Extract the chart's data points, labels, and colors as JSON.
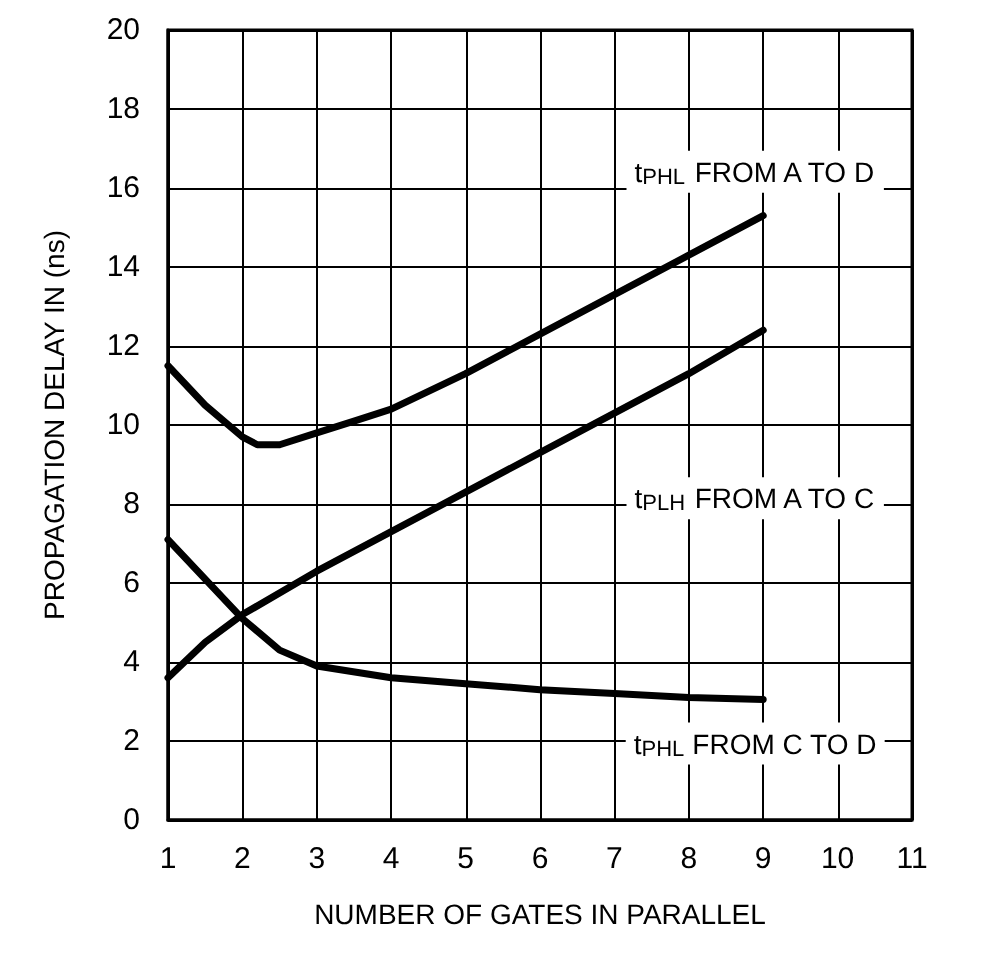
{
  "chart_data": {
    "type": "line",
    "xlabel": "NUMBER OF GATES IN PARALLEL",
    "ylabel": "PROPAGATION DELAY IN (ns)",
    "xlim": [
      1,
      11
    ],
    "xticks": [
      1,
      2,
      3,
      4,
      5,
      6,
      7,
      8,
      9,
      10,
      11
    ],
    "ylim": [
      0,
      20
    ],
    "yticks": [
      0,
      2,
      4,
      6,
      8,
      10,
      12,
      14,
      16,
      18,
      20
    ],
    "grid": true,
    "marker": "none",
    "line_style": "solid",
    "series": [
      {
        "name": "t$_{PHL}$ FROM A TO D",
        "color": "#000000",
        "x": [
          1,
          1.5,
          2,
          2.2,
          2.5,
          3,
          3.5,
          4,
          5,
          6,
          7,
          8,
          9
        ],
        "values": [
          11.5,
          10.5,
          9.7,
          9.5,
          9.5,
          9.8,
          10.1,
          10.4,
          11.3,
          12.3,
          13.3,
          14.3,
          15.3
        ]
      },
      {
        "name": "t$_{PLH}$ FROM A TO C",
        "color": "#000000",
        "x": [
          1,
          1.5,
          2,
          3,
          4,
          5,
          6,
          7,
          8,
          9
        ],
        "values": [
          3.6,
          4.5,
          5.2,
          6.3,
          7.3,
          8.3,
          9.3,
          10.3,
          11.3,
          12.4
        ]
      },
      {
        "name": "t$_{PHL}$ FROM C TO D",
        "color": "#000000",
        "x": [
          1,
          1.5,
          2,
          2.5,
          3,
          4,
          5,
          6,
          7,
          8,
          9
        ],
        "values": [
          7.1,
          6.1,
          5.1,
          4.3,
          3.9,
          3.6,
          3.45,
          3.3,
          3.2,
          3.1,
          3.05
        ]
      }
    ]
  }
}
